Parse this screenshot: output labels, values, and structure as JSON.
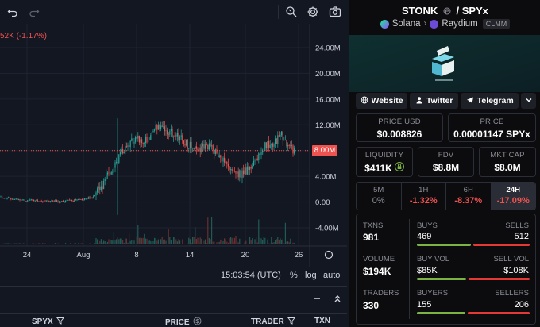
{
  "chart": {
    "delta_text": "52K (-1.17%)",
    "price_badge": "8.00M",
    "y_ticks": [
      "24.00M",
      "20.00M",
      "16.00M",
      "12.00M",
      "8.00M",
      "4.00M",
      "0.00",
      "-4.00M"
    ],
    "y_tick_values": [
      24,
      20,
      16,
      12,
      8,
      4,
      0,
      -4
    ],
    "x_ticks": [
      "24",
      "Aug",
      "8",
      "14",
      "20",
      "26"
    ],
    "current_value": 8.0,
    "footer": {
      "time": "15:03:54 (UTC)",
      "pct": "%",
      "log": "log",
      "auto": "auto"
    },
    "colors": {
      "up": "#26a69a",
      "down": "#ef5350",
      "grid": "#1f2330"
    }
  },
  "trades": {
    "columns": [
      "SPYX",
      "PRICE",
      "TRADER",
      "TXN"
    ]
  },
  "pair": {
    "base": "STONK",
    "quote": "SPYx",
    "chain": "Solana",
    "dex": "Raydium",
    "tag": "CLMM"
  },
  "links": {
    "website": "Website",
    "twitter": "Twitter",
    "telegram": "Telegram"
  },
  "stats": {
    "price_usd": {
      "label": "PRICE USD",
      "value": "$0.008826"
    },
    "price": {
      "label": "PRICE",
      "value": "0.00001147 SPYx"
    },
    "liquidity": {
      "label": "LIQUIDITY",
      "value": "$411K"
    },
    "fdv": {
      "label": "FDV",
      "value": "$8.8M"
    },
    "mktcap": {
      "label": "MKT CAP",
      "value": "$8.0M"
    }
  },
  "timeframes": [
    {
      "label": "5M",
      "value": "0%"
    },
    {
      "label": "1H",
      "value": "-1.32%"
    },
    {
      "label": "6H",
      "value": "-8.37%"
    },
    {
      "label": "24H",
      "value": "-17.09%"
    }
  ],
  "activity": {
    "txns": {
      "label": "TXNS",
      "value": "981"
    },
    "buys": {
      "label": "BUYS",
      "value": "469"
    },
    "sells": {
      "label": "SELLS",
      "value": "512"
    },
    "buys_fraction": 0.478,
    "volume": {
      "label": "VOLUME",
      "value": "$194K"
    },
    "buy_vol": {
      "label": "BUY VOL",
      "value": "$85K"
    },
    "sell_vol": {
      "label": "SELL VOL",
      "value": "$108K"
    },
    "buy_vol_fraction": 0.44,
    "traders": {
      "label": "TRADERS",
      "value": "330"
    },
    "buyers": {
      "label": "BUYERS",
      "value": "155"
    },
    "sellers": {
      "label": "SELLERS",
      "value": "206"
    },
    "buyers_fraction": 0.43
  }
}
